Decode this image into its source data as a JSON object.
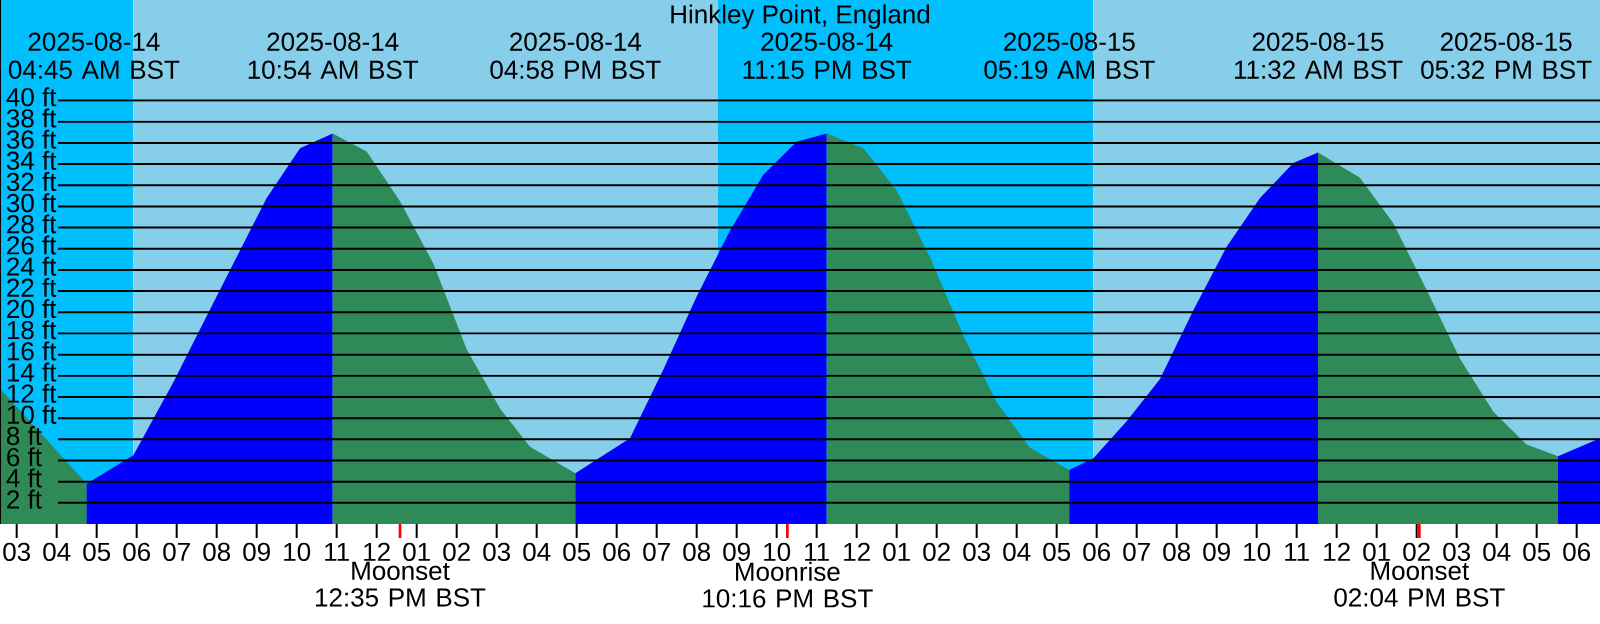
{
  "chart_data": {
    "type": "area",
    "title": "Hinkley Point, England",
    "xlim": [
      "2025-08-14T02:35",
      "2025-08-15T18:35"
    ],
    "ylim": [
      0,
      49.5
    ],
    "yticks": [
      {
        "value": 2,
        "label": "2 ft"
      },
      {
        "value": 4,
        "label": "4 ft"
      },
      {
        "value": 6,
        "label": "6 ft"
      },
      {
        "value": 8,
        "label": "8 ft"
      },
      {
        "value": 10,
        "label": "10 ft"
      },
      {
        "value": 12,
        "label": "12 ft"
      },
      {
        "value": 14,
        "label": "14 ft"
      },
      {
        "value": 16,
        "label": "16 ft"
      },
      {
        "value": 18,
        "label": "18 ft"
      },
      {
        "value": 20,
        "label": "20 ft"
      },
      {
        "value": 22,
        "label": "22 ft"
      },
      {
        "value": 24,
        "label": "24 ft"
      },
      {
        "value": 26,
        "label": "26 ft"
      },
      {
        "value": 28,
        "label": "28 ft"
      },
      {
        "value": 30,
        "label": "30 ft"
      },
      {
        "value": 32,
        "label": "32 ft"
      },
      {
        "value": 34,
        "label": "34 ft"
      },
      {
        "value": 36,
        "label": "36 ft"
      },
      {
        "value": 38,
        "label": "38 ft"
      },
      {
        "value": 40,
        "label": "40 ft"
      }
    ],
    "xticks": [
      {
        "value": "2025-08-14T03:00",
        "label": "03"
      },
      {
        "value": "2025-08-14T04:00",
        "label": "04"
      },
      {
        "value": "2025-08-14T05:00",
        "label": "05"
      },
      {
        "value": "2025-08-14T06:00",
        "label": "06"
      },
      {
        "value": "2025-08-14T07:00",
        "label": "07"
      },
      {
        "value": "2025-08-14T08:00",
        "label": "08"
      },
      {
        "value": "2025-08-14T09:00",
        "label": "09"
      },
      {
        "value": "2025-08-14T10:00",
        "label": "10"
      },
      {
        "value": "2025-08-14T11:00",
        "label": "11"
      },
      {
        "value": "2025-08-14T12:00",
        "label": "12"
      },
      {
        "value": "2025-08-14T13:00",
        "label": "01"
      },
      {
        "value": "2025-08-14T14:00",
        "label": "02"
      },
      {
        "value": "2025-08-14T15:00",
        "label": "03"
      },
      {
        "value": "2025-08-14T16:00",
        "label": "04"
      },
      {
        "value": "2025-08-14T17:00",
        "label": "05"
      },
      {
        "value": "2025-08-14T18:00",
        "label": "06"
      },
      {
        "value": "2025-08-14T19:00",
        "label": "07"
      },
      {
        "value": "2025-08-14T20:00",
        "label": "08"
      },
      {
        "value": "2025-08-14T21:00",
        "label": "09"
      },
      {
        "value": "2025-08-14T22:00",
        "label": "10"
      },
      {
        "value": "2025-08-14T23:00",
        "label": "11"
      },
      {
        "value": "2025-08-15T00:00",
        "label": "12"
      },
      {
        "value": "2025-08-15T01:00",
        "label": "01"
      },
      {
        "value": "2025-08-15T02:00",
        "label": "02"
      },
      {
        "value": "2025-08-15T03:00",
        "label": "03"
      },
      {
        "value": "2025-08-15T04:00",
        "label": "04"
      },
      {
        "value": "2025-08-15T05:00",
        "label": "05"
      },
      {
        "value": "2025-08-15T06:00",
        "label": "06"
      },
      {
        "value": "2025-08-15T07:00",
        "label": "07"
      },
      {
        "value": "2025-08-15T08:00",
        "label": "08"
      },
      {
        "value": "2025-08-15T09:00",
        "label": "09"
      },
      {
        "value": "2025-08-15T10:00",
        "label": "10"
      },
      {
        "value": "2025-08-15T11:00",
        "label": "11"
      },
      {
        "value": "2025-08-15T12:00",
        "label": "12"
      },
      {
        "value": "2025-08-15T13:00",
        "label": "01"
      },
      {
        "value": "2025-08-15T14:00",
        "label": "02"
      },
      {
        "value": "2025-08-15T15:00",
        "label": "03"
      },
      {
        "value": "2025-08-15T16:00",
        "label": "04"
      },
      {
        "value": "2025-08-15T17:00",
        "label": "05"
      },
      {
        "value": "2025-08-15T18:00",
        "label": "06"
      }
    ],
    "grid": "y",
    "bands": [
      {
        "axis": "x",
        "from": "2025-08-14T02:35",
        "to": "2025-08-14T05:55",
        "color": "#00bfff"
      },
      {
        "axis": "x",
        "from": "2025-08-14T05:55",
        "to": "2025-08-14T20:32",
        "color": "#87ceeb"
      },
      {
        "axis": "x",
        "from": "2025-08-14T20:32",
        "to": "2025-08-15T05:55",
        "color": "#00bfff"
      },
      {
        "axis": "x",
        "from": "2025-08-15T05:55",
        "to": "2025-08-15T18:35",
        "color": "#87ceeb"
      }
    ],
    "series": [
      {
        "color": "#2e8b57",
        "x": [
          "2025-08-14T02:35",
          "2025-08-14T04:45"
        ],
        "values": [
          12.8,
          3.8
        ]
      },
      {
        "color": "#0000ff",
        "x": [
          "2025-08-14T04:45",
          "2025-08-14T05:55",
          "2025-08-14T06:55",
          "2025-08-14T07:35",
          "2025-08-14T08:25",
          "2025-08-14T09:15",
          "2025-08-14T10:05",
          "2025-08-14T10:54"
        ],
        "values": [
          3.8,
          6.5,
          13.4,
          18.4,
          24.6,
          30.8,
          35.5,
          36.9
        ]
      },
      {
        "color": "#2e8b57",
        "x": [
          "2025-08-14T10:54",
          "2025-08-14T11:45",
          "2025-08-14T12:35",
          "2025-08-14T13:25",
          "2025-08-14T14:15",
          "2025-08-14T15:05",
          "2025-08-14T15:50",
          "2025-08-14T16:58"
        ],
        "values": [
          36.9,
          35.2,
          30.5,
          24.6,
          16.5,
          10.9,
          7.3,
          4.8
        ]
      },
      {
        "color": "#0000ff",
        "x": [
          "2025-08-14T16:58",
          "2025-08-14T18:20",
          "2025-08-14T19:10",
          "2025-08-14T20:00",
          "2025-08-14T20:50",
          "2025-08-14T21:40",
          "2025-08-14T22:30",
          "2025-08-14T23:15"
        ],
        "values": [
          4.8,
          8.1,
          14.6,
          21.5,
          27.7,
          33.0,
          36.1,
          36.9
        ]
      },
      {
        "color": "#2e8b57",
        "x": [
          "2025-08-14T23:15",
          "2025-08-15T00:10",
          "2025-08-15T01:00",
          "2025-08-15T01:50",
          "2025-08-15T02:40",
          "2025-08-15T03:30",
          "2025-08-15T04:20",
          "2025-08-15T05:19"
        ],
        "values": [
          36.9,
          35.5,
          31.5,
          25.2,
          17.8,
          11.5,
          7.2,
          5.1
        ]
      },
      {
        "color": "#0000ff",
        "x": [
          "2025-08-15T05:19",
          "2025-08-15T05:55",
          "2025-08-15T06:45",
          "2025-08-15T07:35",
          "2025-08-15T08:25",
          "2025-08-15T09:15",
          "2025-08-15T10:05",
          "2025-08-15T10:55",
          "2025-08-15T11:32"
        ],
        "values": [
          5.1,
          6.2,
          9.7,
          13.7,
          20.2,
          26.2,
          30.8,
          34.1,
          35.1
        ]
      },
      {
        "color": "#2e8b57",
        "x": [
          "2025-08-15T11:32",
          "2025-08-15T12:35",
          "2025-08-15T13:25",
          "2025-08-15T14:15",
          "2025-08-15T15:05",
          "2025-08-15T15:55",
          "2025-08-15T16:45",
          "2025-08-15T17:32"
        ],
        "values": [
          35.1,
          32.7,
          28.4,
          22.1,
          15.6,
          10.6,
          7.5,
          6.4
        ]
      },
      {
        "color": "#0000ff",
        "x": [
          "2025-08-15T17:32",
          "2025-08-15T18:35"
        ],
        "values": [
          6.4,
          8.1
        ]
      }
    ],
    "ref_lines": [
      {
        "axis": "x",
        "value": "2025-08-14T12:35",
        "label": "Moonset 12:35 PM BST",
        "color": "#ff0000"
      },
      {
        "axis": "x",
        "value": "2025-08-14T22:16",
        "label": "Moonrise 10:16 PM BST",
        "color": "#ff0000"
      },
      {
        "axis": "x",
        "value": "2025-08-15T14:04",
        "label": "Moonset 02:04 PM BST",
        "color": "#ff0000"
      }
    ],
    "annotations": [
      "2025-08-14 04:45 AM BST",
      "2025-08-14 10:54 AM BST",
      "2025-08-14 04:58 PM BST",
      "2025-08-14 11:15 PM BST",
      "2025-08-15 05:19 AM BST",
      "2025-08-15 11:32 AM BST",
      "2025-08-15 05:32 PM BST"
    ]
  }
}
